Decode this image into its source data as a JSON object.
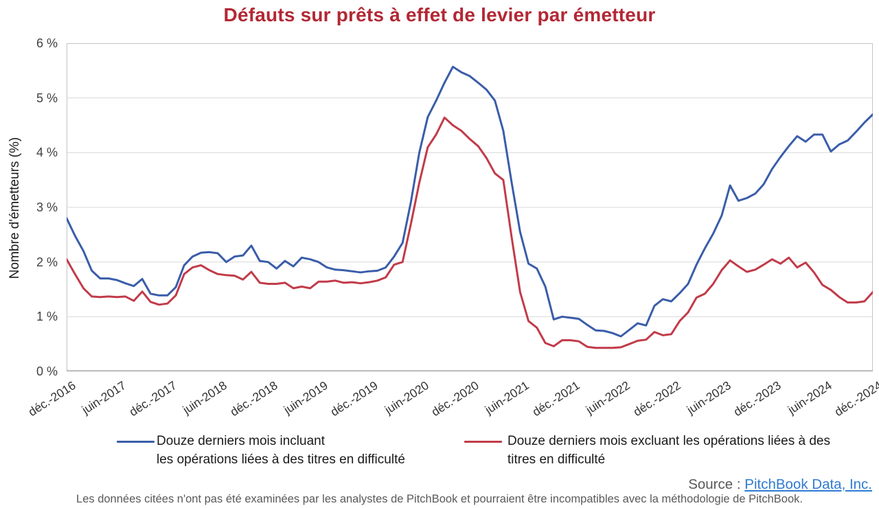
{
  "header": {
    "title": "Défauts sur prêts à effet de levier par émetteur",
    "title_color": "#B22834"
  },
  "chart": {
    "y_axis_title": "Nombre d'émetteurs (%)",
    "y_tick_labels": [
      "0 %",
      "1 %",
      "2 %",
      "3 %",
      "4 %",
      "5 %",
      "6 %"
    ],
    "x_tick_labels": [
      "déc.-2016",
      "juin-2017",
      "déc.-2017",
      "juin-2018",
      "déc.-2018",
      "juin-2019",
      "déc.-2019",
      "juin-2020",
      "déc.-2020",
      "juin-2021",
      "déc.-2021",
      "juin-2022",
      "déc.-2022",
      "juin-2023",
      "déc.-2023",
      "juin-2024",
      "déc.-2024"
    ],
    "gridline_color": "#D9D9D9",
    "border_color": "#C4C4C4",
    "axis_line_color": "#A6A6A6"
  },
  "legend": {
    "items": [
      {
        "line1": "Douze derniers mois incluant",
        "line2": "les opérations liées à des titres en difficulté",
        "color": "#3A5DA9"
      },
      {
        "line1": "Douze derniers mois excluant les opérations liées à des",
        "line2": "titres en difficulté",
        "color": "#C13B49"
      }
    ]
  },
  "source": {
    "label": "Source :",
    "link_text": "PitchBook Data, Inc.",
    "link_color": "#2E7BD3"
  },
  "footnote": {
    "text": "Les données citées n'ont pas été examinées par les analystes de PitchBook et pourraient être incompatibles avec la méthodologie de PitchBook."
  },
  "chart_data": {
    "type": "line",
    "title": "Défauts sur prêts à effet de levier par émetteur",
    "xlabel": "",
    "ylabel": "Nombre d'émetteurs (%)",
    "x_interval": "monthly",
    "x_range_start": "déc.-2016",
    "x_range_end": "déc.-2024",
    "x_tick_labels": [
      "déc.-2016",
      "juin-2017",
      "déc.-2017",
      "juin-2018",
      "déc.-2018",
      "juin-2019",
      "déc.-2019",
      "juin-2020",
      "déc.-2020",
      "juin-2021",
      "déc.-2021",
      "juin-2022",
      "déc.-2022",
      "juin-2023",
      "déc.-2023",
      "juin-2024",
      "déc.-2024"
    ],
    "ylim": [
      0,
      6
    ],
    "y_unit": "%",
    "grid": "horizontal",
    "legend_position": "bottom",
    "series": [
      {
        "name": "Douze derniers mois incluant les opérations liées à des titres en difficulté",
        "color": "#3A5DA9",
        "values": [
          2.8,
          2.48,
          2.2,
          1.84,
          1.7,
          1.7,
          1.67,
          1.61,
          1.56,
          1.69,
          1.42,
          1.39,
          1.39,
          1.54,
          1.94,
          2.1,
          2.17,
          2.18,
          2.16,
          2.0,
          2.1,
          2.12,
          2.3,
          2.02,
          2.0,
          1.88,
          2.02,
          1.92,
          2.08,
          2.05,
          2.0,
          1.9,
          1.86,
          1.85,
          1.83,
          1.81,
          1.83,
          1.84,
          1.9,
          2.1,
          2.35,
          3.1,
          4.0,
          4.65,
          4.95,
          5.28,
          5.57,
          5.47,
          5.4,
          5.28,
          5.15,
          4.95,
          4.4,
          3.45,
          2.55,
          1.97,
          1.88,
          1.55,
          0.95,
          1.0,
          0.98,
          0.96,
          0.85,
          0.75,
          0.74,
          0.7,
          0.64,
          0.76,
          0.88,
          0.84,
          1.2,
          1.32,
          1.28,
          1.43,
          1.6,
          1.95,
          2.25,
          2.52,
          2.85,
          3.4,
          3.12,
          3.17,
          3.25,
          3.42,
          3.7,
          3.92,
          4.12,
          4.3,
          4.2,
          4.33,
          4.33,
          4.02,
          4.15,
          4.22,
          4.38,
          4.55,
          4.7
        ]
      },
      {
        "name": "Douze derniers mois excluant les opérations liées à des titres en difficulté",
        "color": "#C13B49",
        "values": [
          2.05,
          1.78,
          1.52,
          1.37,
          1.36,
          1.37,
          1.36,
          1.37,
          1.29,
          1.46,
          1.27,
          1.22,
          1.24,
          1.39,
          1.78,
          1.9,
          1.94,
          1.85,
          1.78,
          1.76,
          1.75,
          1.68,
          1.82,
          1.62,
          1.6,
          1.6,
          1.62,
          1.52,
          1.55,
          1.52,
          1.64,
          1.64,
          1.66,
          1.62,
          1.63,
          1.61,
          1.63,
          1.66,
          1.72,
          1.95,
          2.0,
          2.7,
          3.45,
          4.1,
          4.33,
          4.64,
          4.5,
          4.4,
          4.25,
          4.12,
          3.9,
          3.62,
          3.5,
          2.45,
          1.45,
          0.92,
          0.8,
          0.52,
          0.46,
          0.57,
          0.57,
          0.55,
          0.45,
          0.43,
          0.43,
          0.43,
          0.44,
          0.5,
          0.56,
          0.58,
          0.72,
          0.66,
          0.68,
          0.92,
          1.08,
          1.35,
          1.42,
          1.6,
          1.85,
          2.03,
          1.92,
          1.82,
          1.86,
          1.95,
          2.05,
          1.97,
          2.08,
          1.9,
          1.99,
          1.81,
          1.58,
          1.49,
          1.36,
          1.26,
          1.26,
          1.28,
          1.45
        ]
      }
    ]
  }
}
